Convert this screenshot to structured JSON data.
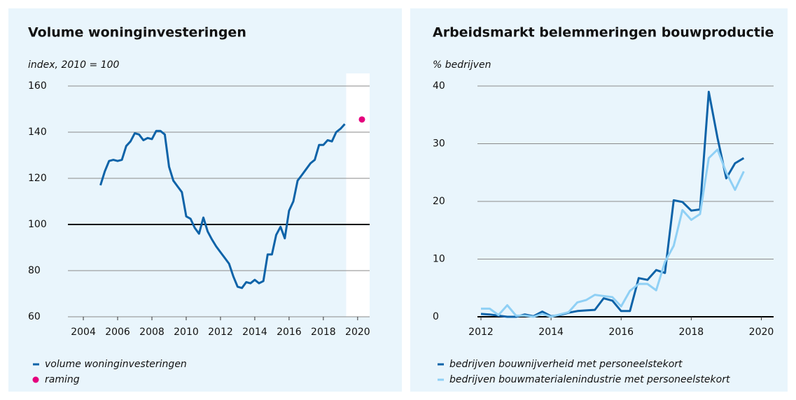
{
  "chart_data": [
    {
      "type": "line",
      "title": "Volume woninginvesteringen",
      "ylabel": "index, 2010 = 100",
      "xlim": [
        2003.1,
        2020.7
      ],
      "xticks": [
        2004,
        2006,
        2008,
        2010,
        2012,
        2014,
        2016,
        2018,
        2020
      ],
      "ylim": [
        60,
        160
      ],
      "yticks": [
        60,
        80,
        100,
        120,
        140,
        160
      ],
      "grid": true,
      "baseline": 100,
      "shade_from": 2019.33,
      "x": [
        2005,
        2005.25,
        2005.5,
        2005.75,
        2006,
        2006.25,
        2006.5,
        2006.75,
        2007,
        2007.25,
        2007.5,
        2007.75,
        2008,
        2008.25,
        2008.5,
        2008.75,
        2009,
        2009.25,
        2009.5,
        2009.75,
        2010,
        2010.25,
        2010.5,
        2010.75,
        2011,
        2011.25,
        2011.5,
        2011.75,
        2012,
        2012.25,
        2012.5,
        2012.75,
        2013,
        2013.25,
        2013.5,
        2013.75,
        2014,
        2014.25,
        2014.5,
        2014.75,
        2015,
        2015.25,
        2015.5,
        2015.75,
        2016,
        2016.25,
        2016.5,
        2016.75,
        2017,
        2017.25,
        2017.5,
        2017.75,
        2018,
        2018.25,
        2018.5,
        2018.75,
        2019,
        2019.25
      ],
      "series": [
        {
          "name": "volume woninginvesteringen",
          "color": "#0e63a8",
          "values": [
            117,
            123,
            127.5,
            128,
            127.5,
            128,
            134,
            136,
            139.5,
            139,
            136.5,
            137.5,
            137,
            140.5,
            140.5,
            139,
            125,
            119,
            116.5,
            114,
            103.5,
            102.5,
            98.5,
            96,
            103,
            97,
            93.5,
            90.5,
            88,
            85.5,
            83,
            77.5,
            73,
            72.5,
            75,
            74.5,
            76,
            74.5,
            75.5,
            87,
            87,
            95.5,
            99,
            94,
            106,
            110,
            119,
            121.5,
            124,
            126.5,
            128,
            134.5,
            134.5,
            136.5,
            136,
            140,
            141.5,
            143.5
          ]
        },
        {
          "name": "raming",
          "color": "#e5007d",
          "marker": "point",
          "x": [
            2020.25
          ],
          "values": [
            145.5
          ]
        }
      ]
    },
    {
      "type": "line",
      "title": "Arbeidsmarkt belemmeringen bouwproductie",
      "ylabel": "% bedrijven",
      "xlim": [
        2011.9,
        2020.35
      ],
      "xticks": [
        2012,
        2014,
        2016,
        2018,
        2020
      ],
      "ylim": [
        0,
        40
      ],
      "yticks": [
        0,
        10,
        20,
        30,
        40
      ],
      "grid": true,
      "baseline": 0,
      "x": [
        2012,
        2012.25,
        2012.5,
        2012.75,
        2013,
        2013.25,
        2013.5,
        2013.75,
        2014,
        2014.25,
        2014.5,
        2014.75,
        2015,
        2015.25,
        2015.5,
        2015.75,
        2016,
        2016.25,
        2016.5,
        2016.75,
        2017,
        2017.25,
        2017.5,
        2017.75,
        2018,
        2018.25,
        2018.5,
        2018.75,
        2019,
        2019.25,
        2019.5
      ],
      "series": [
        {
          "name": "bedrijven bouwnijverheid met personeelstekort",
          "color": "#0e63a8",
          "values": [
            0.5,
            0.4,
            0.2,
            0,
            0,
            0.4,
            0.1,
            0.9,
            0.1,
            0.3,
            0.7,
            1.0,
            1.1,
            1.2,
            3.2,
            2.8,
            1.0,
            1.0,
            6.7,
            6.4,
            8.1,
            7.6,
            20.2,
            19.9,
            18.4,
            18.6,
            39,
            31,
            24,
            26.6,
            27.5
          ]
        },
        {
          "name": "bedrijven bouwmaterialenindustrie met personeelstekort",
          "color": "#8fd0f5",
          "values": [
            1.4,
            1.4,
            0.3,
            2.0,
            0.2,
            0.2,
            0,
            0.5,
            0,
            0.4,
            0.8,
            2.5,
            2.9,
            3.8,
            3.6,
            3.4,
            1.8,
            4.5,
            5.7,
            5.7,
            4.6,
            9.5,
            12.3,
            18.5,
            16.8,
            17.8,
            27.5,
            29,
            25,
            22,
            25.2
          ]
        }
      ]
    }
  ]
}
